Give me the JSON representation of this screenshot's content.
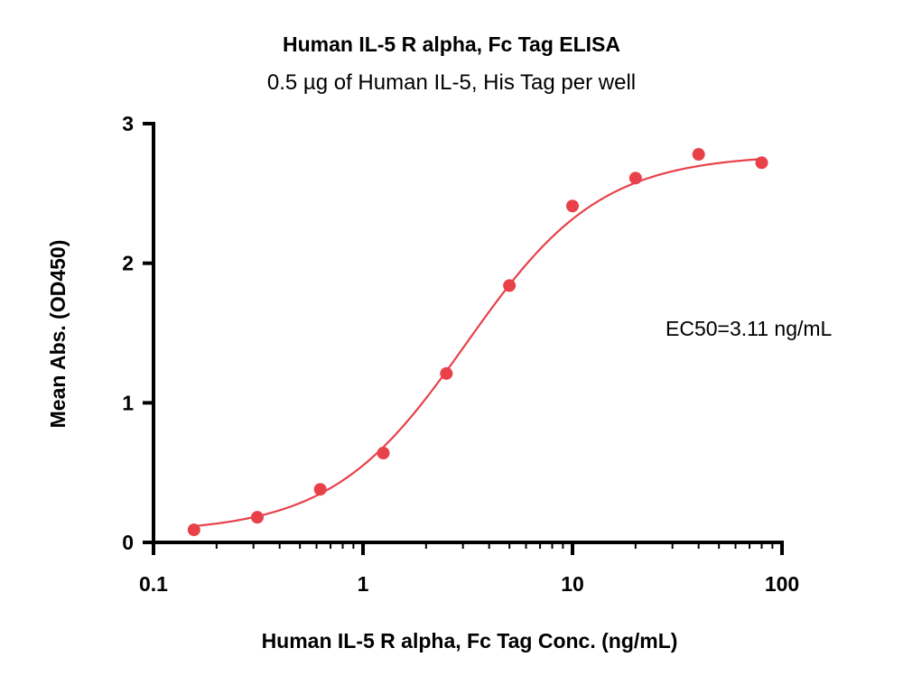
{
  "chart_data": {
    "type": "scatter",
    "title": "Human IL-5 R alpha, Fc Tag ELISA",
    "subtitle": "0.5 µg of Human IL-5, His Tag per well",
    "xlabel": "Human IL-5 R alpha, Fc Tag Conc. (ng/mL)",
    "ylabel": "Mean Abs. (OD450)",
    "x_scale": "log",
    "xlim": [
      0.1,
      100
    ],
    "ylim": [
      0,
      3
    ],
    "x_ticks": [
      0.1,
      1,
      10,
      100
    ],
    "x_tick_labels": [
      "0.1",
      "1",
      "10",
      "100"
    ],
    "y_ticks": [
      0,
      1,
      2,
      3
    ],
    "y_tick_labels": [
      "0",
      "1",
      "2",
      "3"
    ],
    "grid": false,
    "legend": "none",
    "series": [
      {
        "x": [
          0.156,
          0.313,
          0.625,
          1.25,
          2.5,
          5,
          10,
          20,
          40,
          80
        ],
        "y": [
          0.09,
          0.18,
          0.38,
          0.64,
          1.21,
          1.84,
          2.41,
          2.61,
          2.78,
          2.72
        ],
        "color": "#e8414a",
        "fit": "4PL sigmoid"
      }
    ],
    "annotations": [
      {
        "text": "EC50=3.11 ng/mL"
      }
    ]
  }
}
